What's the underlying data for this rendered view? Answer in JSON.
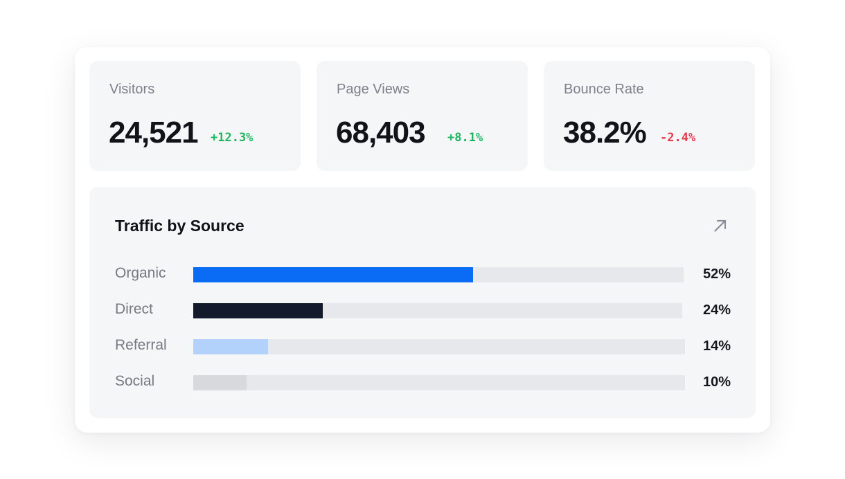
{
  "stats": [
    {
      "label": "Visitors",
      "value": "24,521",
      "delta": "+12.3%",
      "trend": "up"
    },
    {
      "label": "Page Views",
      "value": "68,403",
      "delta": "+8.1%",
      "trend": "up"
    },
    {
      "label": "Bounce Rate",
      "value": "38.2%",
      "delta": "-2.4%",
      "trend": "down"
    }
  ],
  "traffic": {
    "title": "Traffic by Source",
    "action_icon": "arrow-up-right-icon",
    "rows": [
      {
        "label": "Organic",
        "percent_label": "52%",
        "fill_fraction": 0.57,
        "color": "#0a6cf5"
      },
      {
        "label": "Direct",
        "percent_label": "24%",
        "fill_fraction": 0.265,
        "color": "#131a2c"
      },
      {
        "label": "Referral",
        "percent_label": "14%",
        "fill_fraction": 0.152,
        "color": "#b2d2fc"
      },
      {
        "label": "Social",
        "percent_label": "10%",
        "fill_fraction": 0.109,
        "color": "#d8d9dc"
      }
    ]
  },
  "colors": {
    "positive": "#1fb45f",
    "negative": "#e8384c",
    "panel": "#f5f6f8",
    "track": "#e7e8eb"
  }
}
